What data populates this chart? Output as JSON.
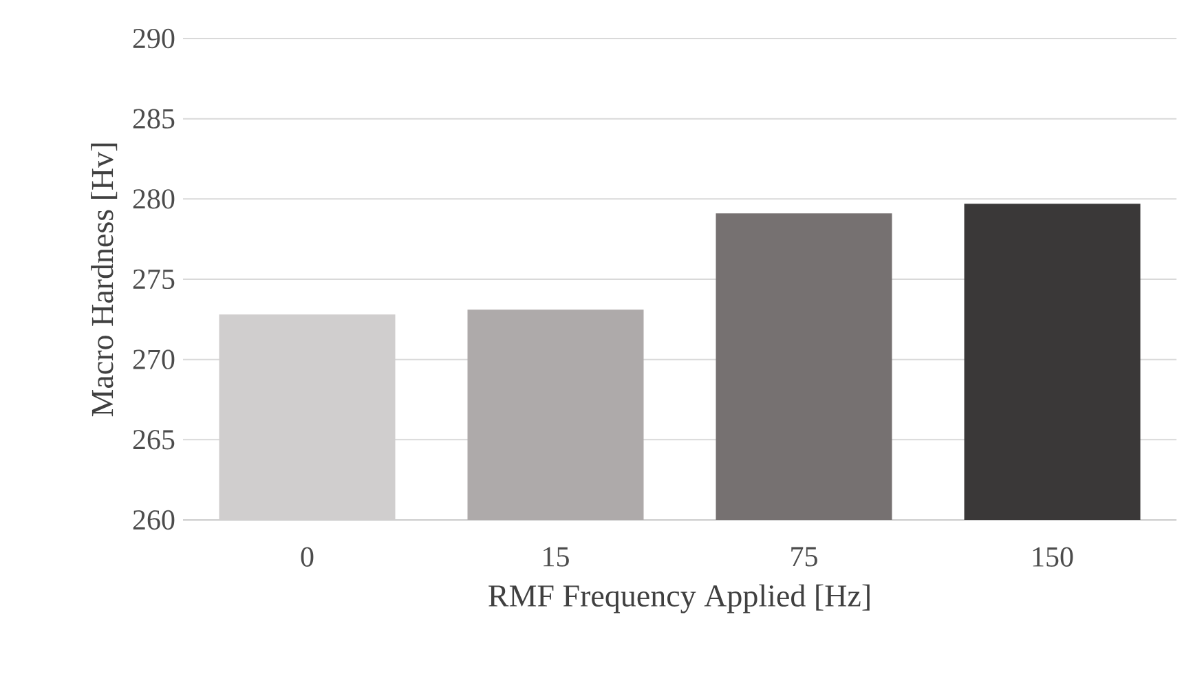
{
  "chart_data": {
    "type": "bar",
    "xlabel": "RMF Frequency Applied [Hz]",
    "ylabel": "Macro Hardness [Hv]",
    "categories": [
      "0",
      "15",
      "75",
      "150"
    ],
    "values": [
      272.8,
      273.1,
      279.1,
      279.7
    ],
    "colors": [
      "#d0cece",
      "#aeaaaa",
      "#767171",
      "#3a3838"
    ],
    "ylim": [
      260,
      290
    ],
    "yticks": [
      260,
      265,
      270,
      275,
      280,
      285,
      290
    ],
    "grid": "y"
  }
}
